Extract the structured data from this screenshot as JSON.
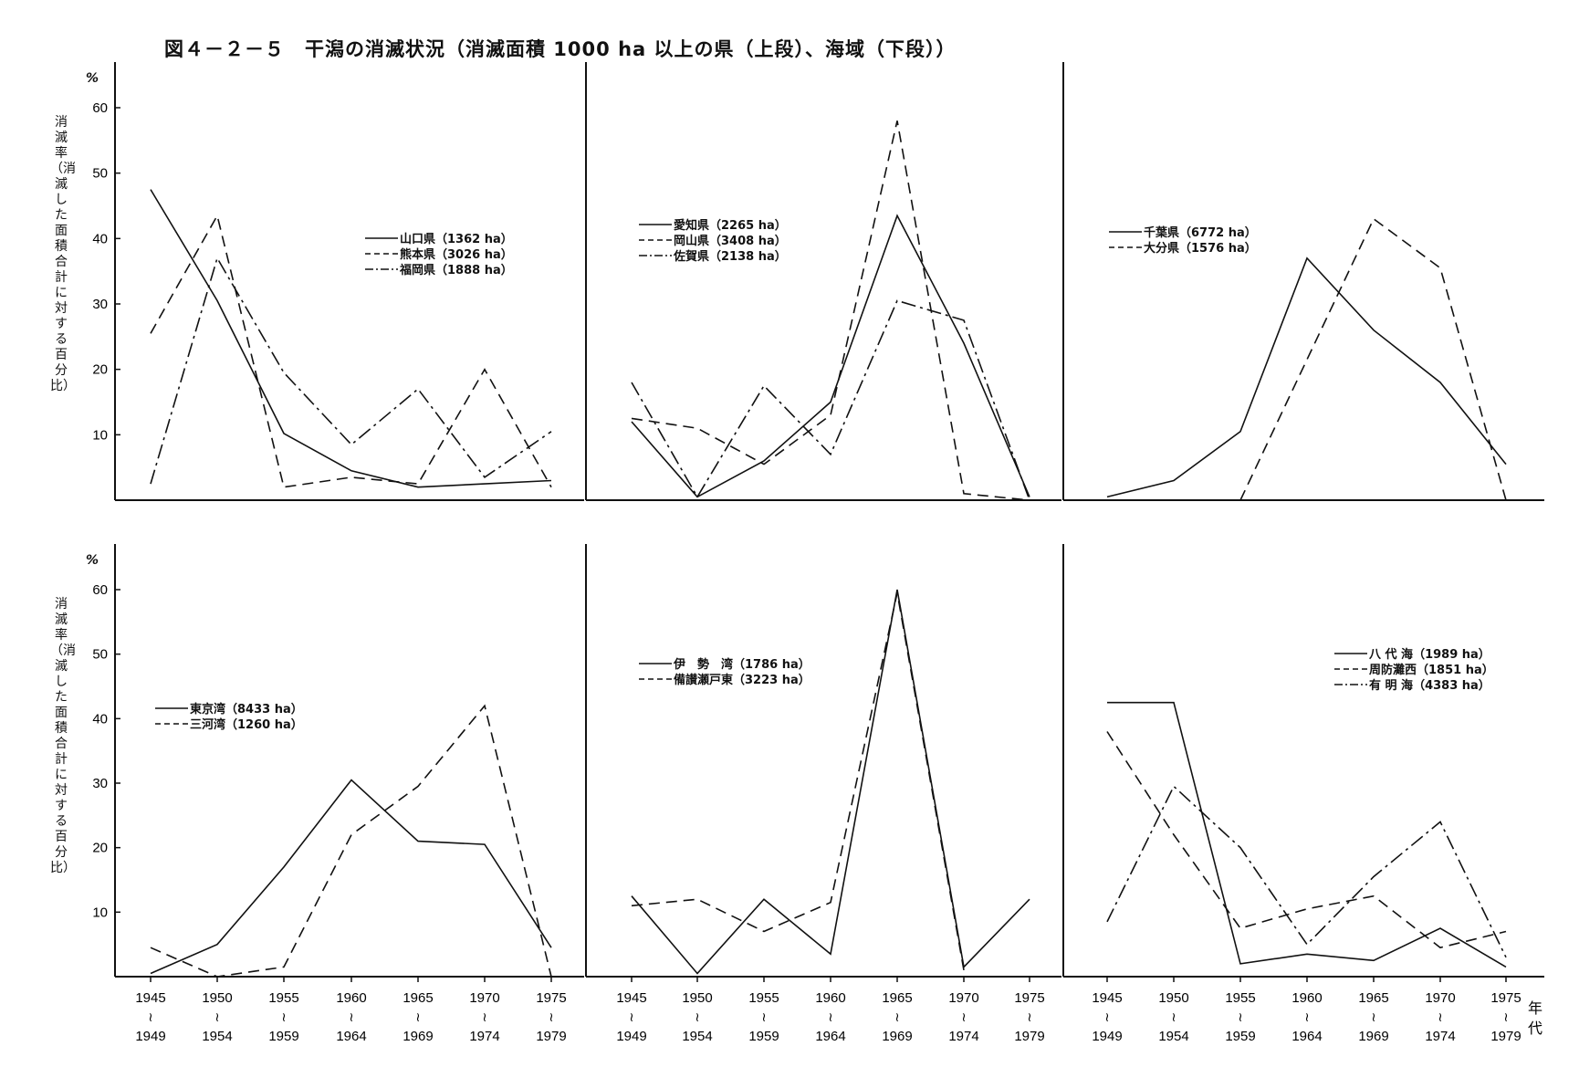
{
  "title": "図４－２－５　干潟の消滅状況（消滅面積 1000 ha 以上の県（上段）、海域（下段））",
  "y_label": "消滅率（消滅した面積合計に対する百分比）",
  "y_unit": "%",
  "x_unit": "年代",
  "x_ticks": [
    {
      "top": "1945",
      "bottom": "1949"
    },
    {
      "top": "1950",
      "bottom": "1954"
    },
    {
      "top": "1955",
      "bottom": "1959"
    },
    {
      "top": "1960",
      "bottom": "1964"
    },
    {
      "top": "1965",
      "bottom": "1969"
    },
    {
      "top": "1970",
      "bottom": "1974"
    },
    {
      "top": "1975",
      "bottom": "1979"
    }
  ],
  "tilde": "≀",
  "chart_data": [
    {
      "type": "line",
      "ylim": [
        0,
        65
      ],
      "y_ticks": [
        10,
        20,
        30,
        40,
        50,
        60
      ],
      "categories": [
        "1945-1949",
        "1950-1954",
        "1955-1959",
        "1960-1964",
        "1965-1969",
        "1970-1974",
        "1975-1979"
      ],
      "series": [
        {
          "name": "山口県",
          "area": "（1362 ha）",
          "style": "solid",
          "values": [
            47.5,
            30.5,
            10.2,
            4.5,
            2,
            2.5,
            3
          ]
        },
        {
          "name": "熊本県",
          "area": "（3026 ha）",
          "style": "dashed",
          "values": [
            25.5,
            43.5,
            2,
            3.5,
            2.5,
            20,
            2
          ]
        },
        {
          "name": "福岡県",
          "area": "（1888 ha）",
          "style": "dashdot",
          "values": [
            2.5,
            37,
            19.5,
            8.5,
            17,
            3.5,
            10.5
          ]
        }
      ]
    },
    {
      "type": "line",
      "ylim": [
        0,
        65
      ],
      "y_ticks": [
        10,
        20,
        30,
        40,
        50,
        60
      ],
      "categories": [
        "1945-1949",
        "1950-1954",
        "1955-1959",
        "1960-1964",
        "1965-1969",
        "1970-1974",
        "1975-1979"
      ],
      "series": [
        {
          "name": "愛知県",
          "area": "（2265 ha）",
          "style": "solid",
          "values": [
            12,
            0.5,
            6,
            15,
            43.5,
            24,
            0.5
          ]
        },
        {
          "name": "岡山県",
          "area": "（3408 ha）",
          "style": "dashed",
          "values": [
            12.5,
            11,
            5.5,
            13,
            58,
            1,
            0
          ]
        },
        {
          "name": "佐賀県",
          "area": "（2138 ha）",
          "style": "dashdot",
          "values": [
            18,
            0.5,
            17.5,
            7,
            30.5,
            27.5,
            0
          ]
        }
      ]
    },
    {
      "type": "line",
      "ylim": [
        0,
        65
      ],
      "y_ticks": [
        10,
        20,
        30,
        40,
        50,
        60
      ],
      "categories": [
        "1945-1949",
        "1950-1954",
        "1955-1959",
        "1960-1964",
        "1965-1969",
        "1970-1974",
        "1975-1979"
      ],
      "series": [
        {
          "name": "千葉県",
          "area": "（6772 ha）",
          "style": "solid",
          "values": [
            0.5,
            3,
            10.5,
            37,
            26,
            18,
            5.5
          ]
        },
        {
          "name": "大分県",
          "area": "（1576 ha）",
          "style": "dashed",
          "values": [
            null,
            null,
            0,
            21.5,
            43,
            35.5,
            0
          ]
        }
      ]
    },
    {
      "type": "line",
      "ylim": [
        0,
        65
      ],
      "y_ticks": [
        10,
        20,
        30,
        40,
        50,
        60
      ],
      "categories": [
        "1945-1949",
        "1950-1954",
        "1955-1959",
        "1960-1964",
        "1965-1969",
        "1970-1974",
        "1975-1979"
      ],
      "series": [
        {
          "name": "東京湾",
          "area": "（8433 ha）",
          "style": "solid",
          "values": [
            0.5,
            5,
            17,
            30.5,
            21,
            20.5,
            4.5
          ]
        },
        {
          "name": "三河湾",
          "area": "（1260 ha）",
          "style": "dashed",
          "values": [
            4.5,
            0,
            1.5,
            22,
            29.5,
            42,
            0
          ]
        }
      ]
    },
    {
      "type": "line",
      "ylim": [
        0,
        65
      ],
      "y_ticks": [
        10,
        20,
        30,
        40,
        50,
        60
      ],
      "categories": [
        "1945-1949",
        "1950-1954",
        "1955-1959",
        "1960-1964",
        "1965-1969",
        "1970-1974",
        "1975-1979"
      ],
      "series": [
        {
          "name": "伊　勢　湾",
          "area": "（1786 ha）",
          "style": "solid",
          "values": [
            12.5,
            0.5,
            12,
            3.5,
            60,
            1.5,
            12
          ]
        },
        {
          "name": "備讃瀬戸東",
          "area": "（3223 ha）",
          "style": "dashed",
          "values": [
            11,
            12,
            7,
            11.5,
            59.5,
            1,
            null
          ]
        }
      ]
    },
    {
      "type": "line",
      "ylim": [
        0,
        65
      ],
      "y_ticks": [
        10,
        20,
        30,
        40,
        50,
        60
      ],
      "categories": [
        "1945-1949",
        "1950-1954",
        "1955-1959",
        "1960-1964",
        "1965-1969",
        "1970-1974",
        "1975-1979"
      ],
      "series": [
        {
          "name": "八 代 海",
          "area": "（1989 ha）",
          "style": "solid",
          "values": [
            42.5,
            42.5,
            2,
            3.5,
            2.5,
            7.5,
            1.5
          ]
        },
        {
          "name": "周防灘西",
          "area": "（1851 ha）",
          "style": "dashed",
          "values": [
            38,
            22,
            7.5,
            10.5,
            12.5,
            4.5,
            7
          ]
        },
        {
          "name": "有 明 海",
          "area": "（4383 ha）",
          "style": "dashdot",
          "values": [
            8.5,
            29.5,
            20,
            5,
            15.5,
            24,
            3
          ]
        }
      ]
    }
  ]
}
